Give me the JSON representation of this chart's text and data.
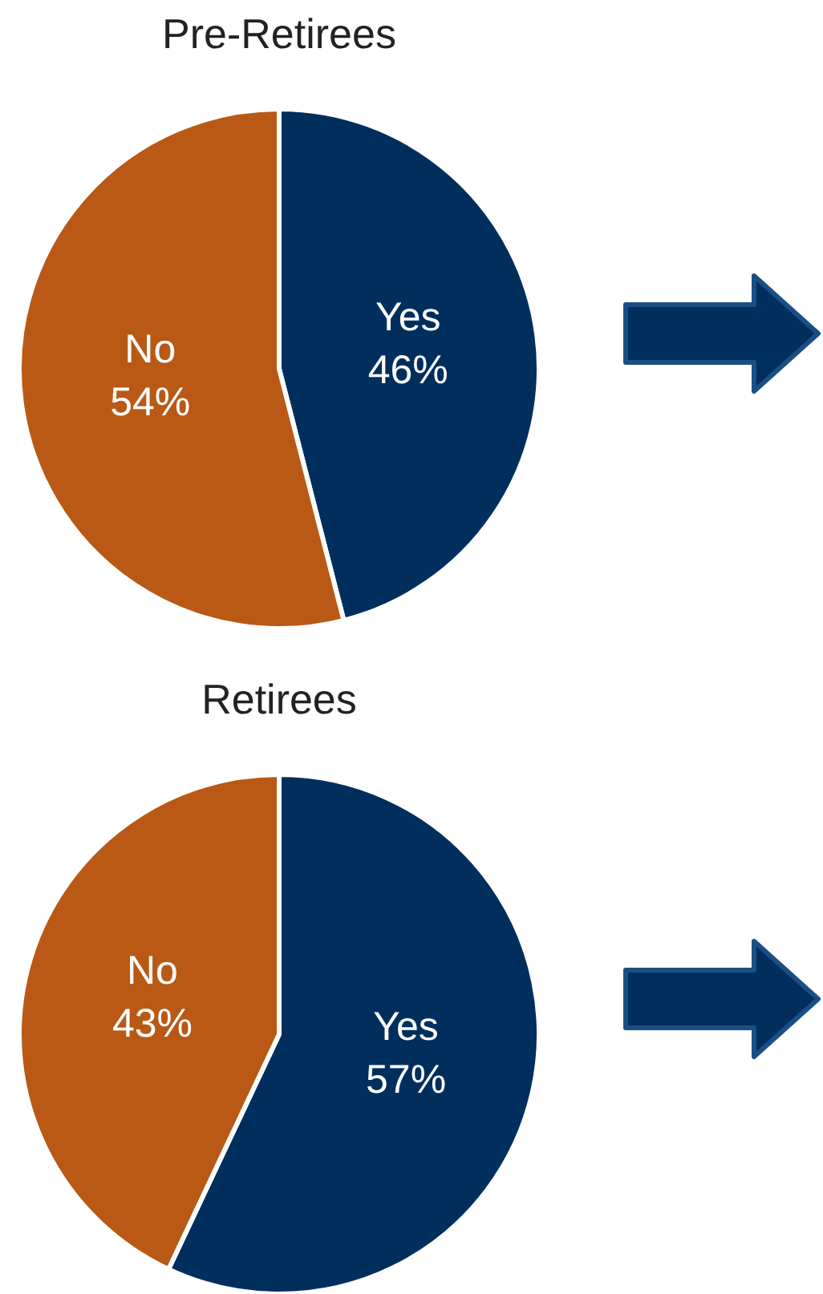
{
  "chart_data": [
    {
      "type": "pie",
      "title": "Pre-Retirees",
      "categories": [
        "Yes",
        "No"
      ],
      "values": [
        46,
        54
      ],
      "colors": [
        "#002e5d",
        "#b95915"
      ],
      "value_labels": [
        "46%",
        "54%"
      ]
    },
    {
      "type": "pie",
      "title": "Retirees",
      "categories": [
        "Yes",
        "No"
      ],
      "values": [
        57,
        43
      ],
      "colors": [
        "#002e5d",
        "#b95915"
      ],
      "value_labels": [
        "57%",
        "43%"
      ]
    }
  ]
}
